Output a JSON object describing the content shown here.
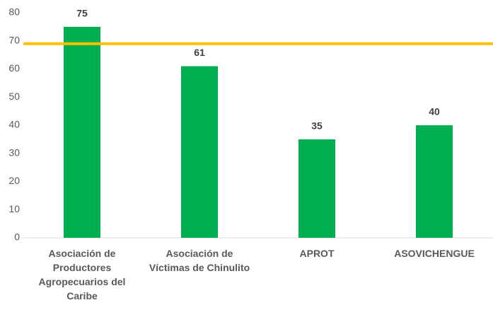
{
  "chart_data": {
    "type": "bar",
    "categories": [
      "Asociación de Productores Agropecuarios del Caribe",
      "Asociación de Víctimas de Chinulito",
      "APROT",
      "ASOVICHENGUE"
    ],
    "values": [
      75,
      61,
      35,
      40
    ],
    "color": "#00b050",
    "reference_line": {
      "value": 69,
      "color": "#ffc000"
    },
    "ylim": [
      0,
      80
    ],
    "yticks": [
      0,
      10,
      20,
      30,
      40,
      50,
      60,
      70,
      80
    ],
    "grid": false
  }
}
